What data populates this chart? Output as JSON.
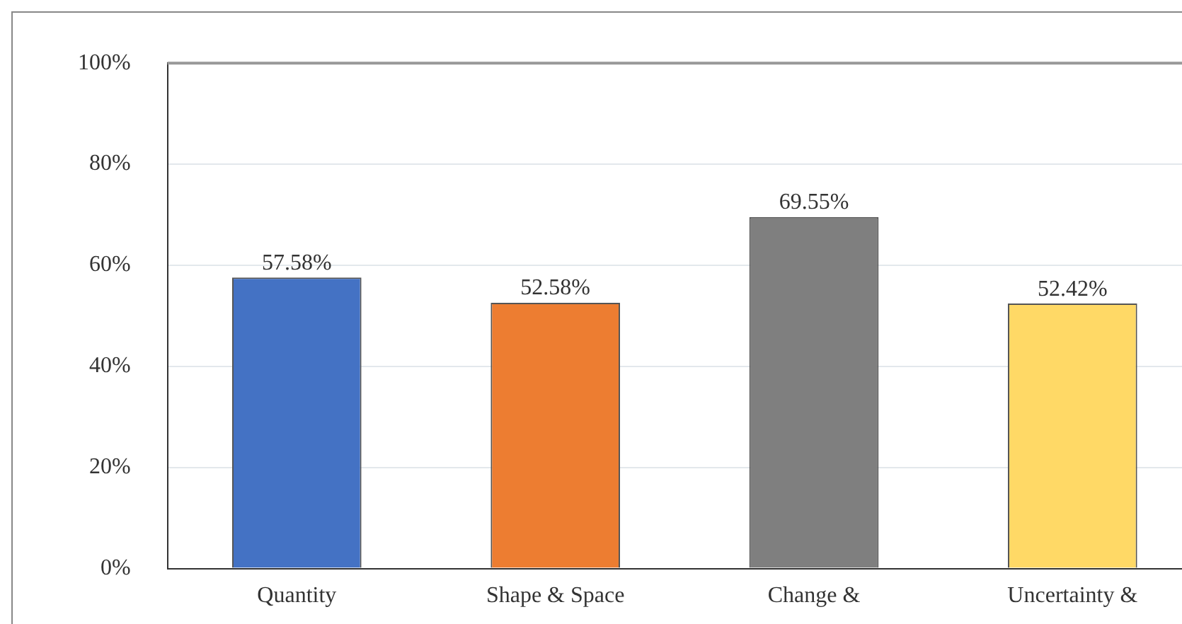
{
  "chart_data": {
    "type": "bar",
    "categories": [
      "Quantity",
      "Shape & Space",
      "Change &",
      "Uncertainty &"
    ],
    "values": [
      57.58,
      52.58,
      69.55,
      52.42
    ],
    "colors": [
      "#4472c4",
      "#ed7d31",
      "#7f7f7f",
      "#ffd966"
    ],
    "value_labels": [
      "57.58%",
      "52.58%",
      "69.55%",
      "52.42%"
    ],
    "ylim": [
      0,
      100
    ],
    "yticks": [
      {
        "value": 0,
        "label": "0%"
      },
      {
        "value": 20,
        "label": "20%"
      },
      {
        "value": 40,
        "label": "40%"
      },
      {
        "value": 60,
        "label": "60%"
      },
      {
        "value": 80,
        "label": "80%"
      },
      {
        "value": 100,
        "label": "100%"
      }
    ],
    "grid": "y",
    "legend": false
  }
}
